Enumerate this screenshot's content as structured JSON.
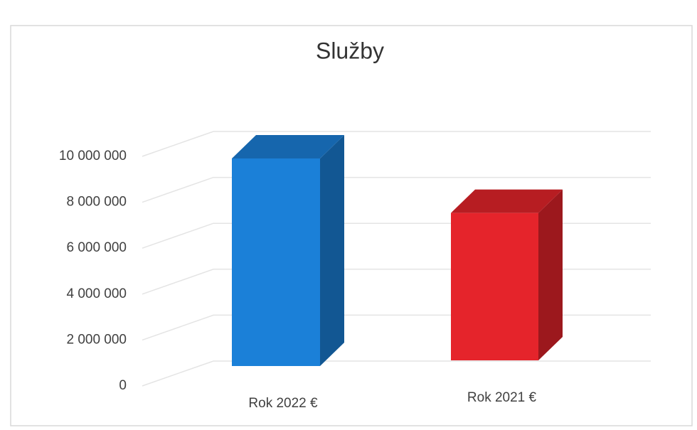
{
  "chart_data": {
    "type": "bar3d",
    "title": "Služby",
    "categories": [
      "Rok 2022 €",
      "Rok 2021 €"
    ],
    "values": [
      9900000,
      7300000
    ],
    "colors": [
      "#1b80d8",
      "#e5242b"
    ],
    "ylim": [
      0,
      10000000
    ],
    "yticks": [
      0,
      {
        "value": 2000000,
        "label": "2 000 000"
      },
      {
        "value": 4000000,
        "label": "4 000 000"
      },
      {
        "value": 6000000,
        "label": "6 000 000"
      },
      {
        "value": 8000000,
        "label": "8 000 000"
      },
      {
        "value": 10000000,
        "label": "10 000 000"
      }
    ],
    "grid": true
  }
}
